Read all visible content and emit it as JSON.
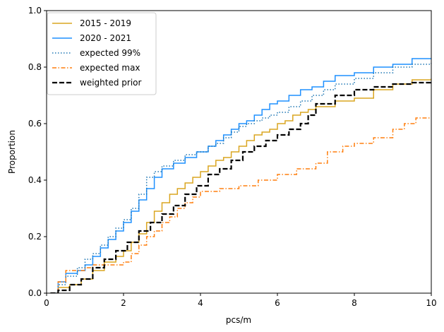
{
  "chart_data": {
    "type": "line",
    "subtype": "empirical-cdf-step",
    "xlabel": "pcs/m",
    "ylabel": "Proportion",
    "xlim": [
      0,
      10
    ],
    "ylim": [
      0,
      1
    ],
    "x_ticks": [
      "0",
      "2",
      "4",
      "6",
      "8",
      "10"
    ],
    "y_ticks": [
      "0.0",
      "0.2",
      "0.4",
      "0.6",
      "0.8",
      "1.0"
    ],
    "grid": false,
    "legend_position": "top-left",
    "series": [
      {
        "name": "2015 - 2019",
        "color": "#DAA520",
        "style": "solid",
        "points": [
          [
            0.1,
            0
          ],
          [
            0.3,
            0.02
          ],
          [
            0.6,
            0.03
          ],
          [
            0.9,
            0.05
          ],
          [
            1.2,
            0.08
          ],
          [
            1.5,
            0.11
          ],
          [
            1.8,
            0.13
          ],
          [
            2.0,
            0.15
          ],
          [
            2.2,
            0.18
          ],
          [
            2.4,
            0.21
          ],
          [
            2.6,
            0.25
          ],
          [
            2.8,
            0.29
          ],
          [
            3.0,
            0.32
          ],
          [
            3.2,
            0.35
          ],
          [
            3.4,
            0.37
          ],
          [
            3.6,
            0.39
          ],
          [
            3.8,
            0.41
          ],
          [
            4.0,
            0.43
          ],
          [
            4.2,
            0.45
          ],
          [
            4.4,
            0.47
          ],
          [
            4.6,
            0.48
          ],
          [
            4.8,
            0.5
          ],
          [
            5.0,
            0.52
          ],
          [
            5.2,
            0.54
          ],
          [
            5.4,
            0.56
          ],
          [
            5.6,
            0.57
          ],
          [
            5.8,
            0.58
          ],
          [
            6.0,
            0.6
          ],
          [
            6.2,
            0.61
          ],
          [
            6.4,
            0.63
          ],
          [
            6.6,
            0.64
          ],
          [
            6.8,
            0.65
          ],
          [
            7.0,
            0.66
          ],
          [
            7.5,
            0.68
          ],
          [
            8.0,
            0.69
          ],
          [
            8.5,
            0.72
          ],
          [
            9.0,
            0.74
          ],
          [
            9.5,
            0.755
          ],
          [
            10,
            0.76
          ]
        ]
      },
      {
        "name": "2020 - 2021",
        "color": "#1E90FF",
        "style": "solid",
        "points": [
          [
            0.1,
            0
          ],
          [
            0.3,
            0.04
          ],
          [
            0.5,
            0.07
          ],
          [
            0.8,
            0.08
          ],
          [
            1.0,
            0.1
          ],
          [
            1.2,
            0.13
          ],
          [
            1.4,
            0.16
          ],
          [
            1.6,
            0.19
          ],
          [
            1.8,
            0.22
          ],
          [
            2.0,
            0.25
          ],
          [
            2.2,
            0.29
          ],
          [
            2.4,
            0.33
          ],
          [
            2.6,
            0.37
          ],
          [
            2.8,
            0.41
          ],
          [
            3.0,
            0.44
          ],
          [
            3.3,
            0.46
          ],
          [
            3.6,
            0.48
          ],
          [
            3.9,
            0.5
          ],
          [
            4.2,
            0.52
          ],
          [
            4.4,
            0.54
          ],
          [
            4.6,
            0.56
          ],
          [
            4.8,
            0.58
          ],
          [
            5.0,
            0.6
          ],
          [
            5.2,
            0.61
          ],
          [
            5.4,
            0.63
          ],
          [
            5.6,
            0.65
          ],
          [
            5.8,
            0.67
          ],
          [
            6.0,
            0.68
          ],
          [
            6.3,
            0.7
          ],
          [
            6.6,
            0.72
          ],
          [
            6.9,
            0.73
          ],
          [
            7.2,
            0.75
          ],
          [
            7.5,
            0.77
          ],
          [
            8.0,
            0.78
          ],
          [
            8.5,
            0.8
          ],
          [
            9.0,
            0.81
          ],
          [
            9.5,
            0.83
          ],
          [
            10,
            0.83
          ]
        ]
      },
      {
        "name": "expected 99%",
        "color": "#1F77B4",
        "style": "dotted",
        "points": [
          [
            0.1,
            0
          ],
          [
            0.3,
            0.03
          ],
          [
            0.5,
            0.06
          ],
          [
            0.8,
            0.09
          ],
          [
            1.0,
            0.12
          ],
          [
            1.2,
            0.14
          ],
          [
            1.4,
            0.17
          ],
          [
            1.6,
            0.2
          ],
          [
            1.8,
            0.23
          ],
          [
            2.0,
            0.26
          ],
          [
            2.2,
            0.3
          ],
          [
            2.4,
            0.35
          ],
          [
            2.6,
            0.41
          ],
          [
            2.8,
            0.43
          ],
          [
            3.0,
            0.45
          ],
          [
            3.3,
            0.47
          ],
          [
            3.6,
            0.49
          ],
          [
            3.9,
            0.5
          ],
          [
            4.2,
            0.52
          ],
          [
            4.4,
            0.53
          ],
          [
            4.6,
            0.55
          ],
          [
            4.8,
            0.57
          ],
          [
            5.0,
            0.59
          ],
          [
            5.2,
            0.6
          ],
          [
            5.4,
            0.61
          ],
          [
            5.6,
            0.62
          ],
          [
            5.8,
            0.63
          ],
          [
            6.0,
            0.64
          ],
          [
            6.3,
            0.66
          ],
          [
            6.6,
            0.68
          ],
          [
            6.9,
            0.7
          ],
          [
            7.2,
            0.72
          ],
          [
            7.5,
            0.74
          ],
          [
            8.0,
            0.76
          ],
          [
            8.5,
            0.78
          ],
          [
            9.0,
            0.8
          ],
          [
            9.5,
            0.81
          ],
          [
            10,
            0.82
          ]
        ]
      },
      {
        "name": "expected max",
        "color": "#FF7F0E",
        "style": "dashdot",
        "points": [
          [
            0.1,
            0
          ],
          [
            0.3,
            0.04
          ],
          [
            0.5,
            0.08
          ],
          [
            0.8,
            0.08
          ],
          [
            1.0,
            0.09
          ],
          [
            1.2,
            0.1
          ],
          [
            1.6,
            0.1
          ],
          [
            2.0,
            0.11
          ],
          [
            2.2,
            0.14
          ],
          [
            2.4,
            0.17
          ],
          [
            2.6,
            0.2
          ],
          [
            2.8,
            0.22
          ],
          [
            3.0,
            0.25
          ],
          [
            3.2,
            0.27
          ],
          [
            3.4,
            0.3
          ],
          [
            3.6,
            0.32
          ],
          [
            3.8,
            0.34
          ],
          [
            4.0,
            0.36
          ],
          [
            4.5,
            0.37
          ],
          [
            5.0,
            0.38
          ],
          [
            5.5,
            0.4
          ],
          [
            6.0,
            0.42
          ],
          [
            6.5,
            0.44
          ],
          [
            7.0,
            0.46
          ],
          [
            7.3,
            0.5
          ],
          [
            7.7,
            0.52
          ],
          [
            8.0,
            0.53
          ],
          [
            8.5,
            0.55
          ],
          [
            9.0,
            0.58
          ],
          [
            9.3,
            0.6
          ],
          [
            9.6,
            0.62
          ],
          [
            10,
            0.62
          ]
        ]
      },
      {
        "name": "weighted prior",
        "color": "#000000",
        "style": "dashed",
        "points": [
          [
            0.1,
            0
          ],
          [
            0.3,
            0.01
          ],
          [
            0.6,
            0.03
          ],
          [
            0.9,
            0.05
          ],
          [
            1.2,
            0.09
          ],
          [
            1.5,
            0.12
          ],
          [
            1.8,
            0.15
          ],
          [
            2.1,
            0.18
          ],
          [
            2.4,
            0.22
          ],
          [
            2.7,
            0.25
          ],
          [
            3.0,
            0.28
          ],
          [
            3.3,
            0.31
          ],
          [
            3.6,
            0.35
          ],
          [
            3.9,
            0.38
          ],
          [
            4.2,
            0.42
          ],
          [
            4.5,
            0.44
          ],
          [
            4.8,
            0.47
          ],
          [
            5.1,
            0.5
          ],
          [
            5.4,
            0.52
          ],
          [
            5.7,
            0.54
          ],
          [
            6.0,
            0.56
          ],
          [
            6.3,
            0.58
          ],
          [
            6.6,
            0.6
          ],
          [
            6.8,
            0.63
          ],
          [
            7.0,
            0.67
          ],
          [
            7.5,
            0.7
          ],
          [
            8.0,
            0.72
          ],
          [
            8.5,
            0.73
          ],
          [
            9.0,
            0.74
          ],
          [
            9.5,
            0.745
          ],
          [
            10,
            0.75
          ]
        ]
      }
    ]
  }
}
